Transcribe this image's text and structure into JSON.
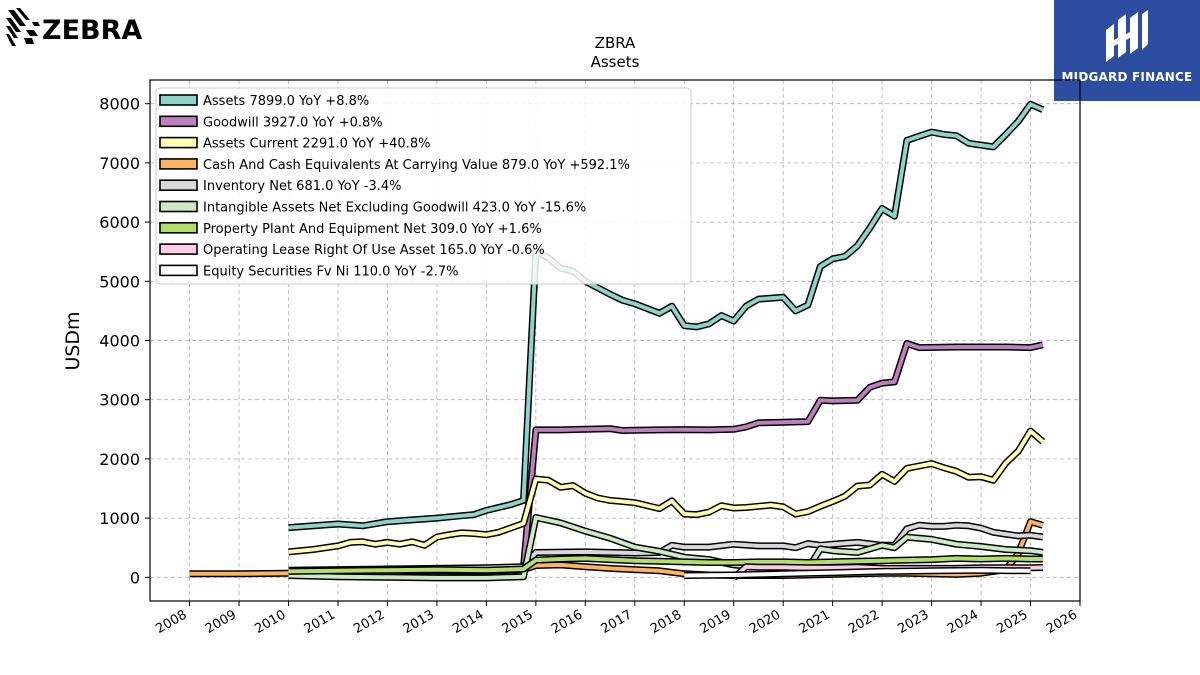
{
  "brand_left": {
    "name": "ZEBRA",
    "icon": "zebra-logo-icon"
  },
  "brand_right": {
    "name": "MIDGARD FINANCE",
    "icon": "midgard-logo-icon",
    "background": "#2d4ea0"
  },
  "chart_data": {
    "type": "line",
    "title": "ZBRA",
    "subtitle": "Assets",
    "ylabel": "USDm",
    "xlabel": "",
    "xlim": [
      2007.2,
      2026.0
    ],
    "ylim": [
      -400,
      8400
    ],
    "yticks": [
      0,
      1000,
      2000,
      3000,
      4000,
      5000,
      6000,
      7000,
      8000
    ],
    "xticks": [
      2008,
      2009,
      2010,
      2011,
      2012,
      2013,
      2014,
      2015,
      2016,
      2017,
      2018,
      2019,
      2020,
      2021,
      2022,
      2023,
      2024,
      2025,
      2026
    ],
    "grid": true,
    "legend_position": "top-left",
    "series": [
      {
        "name": "Assets",
        "legend": "Assets  7899.0 YoY +8.8%",
        "color": "#8dd3c7",
        "points": [
          [
            2010.0,
            840
          ],
          [
            2011.0,
            900
          ],
          [
            2011.5,
            870
          ],
          [
            2012.0,
            940
          ],
          [
            2012.5,
            970
          ],
          [
            2013.0,
            1000
          ],
          [
            2013.5,
            1040
          ],
          [
            2013.75,
            1060
          ],
          [
            2014.0,
            1130
          ],
          [
            2014.5,
            1230
          ],
          [
            2014.75,
            1300
          ],
          [
            2015.0,
            5500
          ],
          [
            2015.25,
            5400
          ],
          [
            2015.5,
            5220
          ],
          [
            2015.75,
            5170
          ],
          [
            2016.0,
            5000
          ],
          [
            2016.5,
            4780
          ],
          [
            2016.75,
            4680
          ],
          [
            2017.0,
            4620
          ],
          [
            2017.5,
            4460
          ],
          [
            2017.75,
            4580
          ],
          [
            2018.0,
            4250
          ],
          [
            2018.25,
            4230
          ],
          [
            2018.5,
            4280
          ],
          [
            2018.75,
            4420
          ],
          [
            2019.0,
            4330
          ],
          [
            2019.25,
            4580
          ],
          [
            2019.5,
            4700
          ],
          [
            2020.0,
            4730
          ],
          [
            2020.25,
            4500
          ],
          [
            2020.5,
            4600
          ],
          [
            2020.75,
            5250
          ],
          [
            2021.0,
            5380
          ],
          [
            2021.25,
            5420
          ],
          [
            2021.5,
            5600
          ],
          [
            2021.75,
            5900
          ],
          [
            2022.0,
            6230
          ],
          [
            2022.25,
            6100
          ],
          [
            2022.5,
            7380
          ],
          [
            2022.75,
            7450
          ],
          [
            2023.0,
            7520
          ],
          [
            2023.25,
            7480
          ],
          [
            2023.5,
            7460
          ],
          [
            2023.75,
            7330
          ],
          [
            2024.0,
            7300
          ],
          [
            2024.25,
            7270
          ],
          [
            2024.5,
            7480
          ],
          [
            2024.75,
            7700
          ],
          [
            2025.0,
            7990
          ],
          [
            2025.25,
            7899
          ]
        ]
      },
      {
        "name": "Goodwill",
        "legend": "Goodwill  3927.0 YoY +0.8%",
        "color": "#bc80bd",
        "points": [
          [
            2014.75,
            170
          ],
          [
            2015.0,
            2490
          ],
          [
            2015.5,
            2490
          ],
          [
            2016.0,
            2500
          ],
          [
            2016.5,
            2510
          ],
          [
            2016.75,
            2480
          ],
          [
            2017.5,
            2490
          ],
          [
            2018.0,
            2495
          ],
          [
            2018.5,
            2490
          ],
          [
            2019.0,
            2500
          ],
          [
            2019.25,
            2540
          ],
          [
            2019.5,
            2610
          ],
          [
            2020.0,
            2620
          ],
          [
            2020.5,
            2630
          ],
          [
            2020.75,
            2990
          ],
          [
            2021.0,
            2980
          ],
          [
            2021.5,
            2990
          ],
          [
            2021.75,
            3210
          ],
          [
            2022.0,
            3280
          ],
          [
            2022.25,
            3300
          ],
          [
            2022.5,
            3950
          ],
          [
            2022.75,
            3880
          ],
          [
            2023.5,
            3890
          ],
          [
            2024.5,
            3890
          ],
          [
            2025.0,
            3880
          ],
          [
            2025.25,
            3927
          ]
        ]
      },
      {
        "name": "Assets Current",
        "legend": "Assets Current  2291.0 YoY +40.8%",
        "color": "#ffffb3",
        "points": [
          [
            2010.0,
            430
          ],
          [
            2010.5,
            470
          ],
          [
            2011.0,
            530
          ],
          [
            2011.25,
            590
          ],
          [
            2011.5,
            600
          ],
          [
            2011.75,
            560
          ],
          [
            2012.0,
            590
          ],
          [
            2012.25,
            560
          ],
          [
            2012.5,
            600
          ],
          [
            2012.75,
            540
          ],
          [
            2013.0,
            680
          ],
          [
            2013.25,
            720
          ],
          [
            2013.5,
            750
          ],
          [
            2013.75,
            740
          ],
          [
            2014.0,
            720
          ],
          [
            2014.25,
            760
          ],
          [
            2014.75,
            910
          ],
          [
            2015.0,
            1660
          ],
          [
            2015.25,
            1640
          ],
          [
            2015.5,
            1520
          ],
          [
            2015.75,
            1550
          ],
          [
            2016.0,
            1420
          ],
          [
            2016.25,
            1340
          ],
          [
            2016.5,
            1300
          ],
          [
            2016.75,
            1280
          ],
          [
            2017.0,
            1260
          ],
          [
            2017.5,
            1160
          ],
          [
            2017.75,
            1290
          ],
          [
            2018.0,
            1070
          ],
          [
            2018.25,
            1060
          ],
          [
            2018.5,
            1100
          ],
          [
            2018.75,
            1210
          ],
          [
            2019.0,
            1170
          ],
          [
            2019.25,
            1180
          ],
          [
            2019.5,
            1200
          ],
          [
            2019.75,
            1220
          ],
          [
            2020.0,
            1190
          ],
          [
            2020.25,
            1070
          ],
          [
            2020.5,
            1110
          ],
          [
            2020.75,
            1200
          ],
          [
            2021.0,
            1280
          ],
          [
            2021.25,
            1370
          ],
          [
            2021.5,
            1540
          ],
          [
            2021.75,
            1560
          ],
          [
            2022.0,
            1740
          ],
          [
            2022.25,
            1620
          ],
          [
            2022.5,
            1840
          ],
          [
            2022.75,
            1880
          ],
          [
            2023.0,
            1920
          ],
          [
            2023.25,
            1850
          ],
          [
            2023.5,
            1790
          ],
          [
            2023.75,
            1690
          ],
          [
            2024.0,
            1700
          ],
          [
            2024.25,
            1640
          ],
          [
            2024.5,
            1930
          ],
          [
            2024.75,
            2130
          ],
          [
            2025.0,
            2470
          ],
          [
            2025.25,
            2291
          ]
        ]
      },
      {
        "name": "Cash And Cash Equivalents At Carrying Value",
        "legend": "Cash And Cash Equivalents At Carrying Value  879.0 YoY +592.1%",
        "color": "#fdb462",
        "points": [
          [
            2008.0,
            60
          ],
          [
            2009.0,
            60
          ],
          [
            2010.0,
            70
          ],
          [
            2011.0,
            80
          ],
          [
            2012.0,
            90
          ],
          [
            2013.0,
            110
          ],
          [
            2014.0,
            100
          ],
          [
            2014.75,
            130
          ],
          [
            2015.0,
            200
          ],
          [
            2015.5,
            210
          ],
          [
            2016.0,
            180
          ],
          [
            2016.5,
            150
          ],
          [
            2017.0,
            130
          ],
          [
            2017.5,
            110
          ],
          [
            2018.0,
            60
          ],
          [
            2018.5,
            40
          ],
          [
            2019.0,
            30
          ],
          [
            2019.5,
            30
          ],
          [
            2020.0,
            30
          ],
          [
            2020.5,
            40
          ],
          [
            2021.0,
            50
          ],
          [
            2021.5,
            60
          ],
          [
            2022.0,
            70
          ],
          [
            2022.5,
            70
          ],
          [
            2023.0,
            60
          ],
          [
            2023.5,
            50
          ],
          [
            2024.0,
            70
          ],
          [
            2024.5,
            130
          ],
          [
            2024.75,
            400
          ],
          [
            2025.0,
            940
          ],
          [
            2025.25,
            879
          ]
        ]
      },
      {
        "name": "Inventory Net",
        "legend": "Inventory Net  681.0 YoY -3.4%",
        "color": "#d9d9d9",
        "points": [
          [
            2010.0,
            120
          ],
          [
            2011.0,
            130
          ],
          [
            2012.0,
            140
          ],
          [
            2013.0,
            150
          ],
          [
            2014.0,
            160
          ],
          [
            2014.75,
            180
          ],
          [
            2015.0,
            420
          ],
          [
            2016.0,
            430
          ],
          [
            2017.0,
            410
          ],
          [
            2017.5,
            420
          ],
          [
            2017.75,
            540
          ],
          [
            2018.0,
            510
          ],
          [
            2018.5,
            510
          ],
          [
            2019.0,
            560
          ],
          [
            2019.5,
            530
          ],
          [
            2020.0,
            530
          ],
          [
            2020.25,
            500
          ],
          [
            2020.5,
            570
          ],
          [
            2020.75,
            540
          ],
          [
            2021.0,
            560
          ],
          [
            2021.5,
            590
          ],
          [
            2022.0,
            540
          ],
          [
            2022.25,
            540
          ],
          [
            2022.5,
            820
          ],
          [
            2022.75,
            880
          ],
          [
            2023.0,
            860
          ],
          [
            2023.25,
            860
          ],
          [
            2023.5,
            880
          ],
          [
            2023.75,
            870
          ],
          [
            2024.0,
            830
          ],
          [
            2024.25,
            760
          ],
          [
            2024.5,
            730
          ],
          [
            2024.75,
            700
          ],
          [
            2025.0,
            710
          ],
          [
            2025.25,
            681
          ]
        ]
      },
      {
        "name": "Intangible Assets Net Excluding Goodwill",
        "legend": "Intangible Assets Net Excluding Goodwill  423.0 YoY -15.6%",
        "color": "#ccebc5",
        "points": [
          [
            2010.0,
            30
          ],
          [
            2011.0,
            10
          ],
          [
            2012.0,
            0
          ],
          [
            2013.0,
            -10
          ],
          [
            2014.0,
            -10
          ],
          [
            2014.75,
            10
          ],
          [
            2015.0,
            1010
          ],
          [
            2015.5,
            920
          ],
          [
            2016.0,
            780
          ],
          [
            2016.5,
            660
          ],
          [
            2017.0,
            510
          ],
          [
            2017.5,
            440
          ],
          [
            2018.0,
            340
          ],
          [
            2018.5,
            300
          ],
          [
            2019.0,
            210
          ],
          [
            2019.5,
            180
          ],
          [
            2020.0,
            150
          ],
          [
            2020.5,
            140
          ],
          [
            2020.75,
            480
          ],
          [
            2021.0,
            450
          ],
          [
            2021.5,
            420
          ],
          [
            2022.0,
            540
          ],
          [
            2022.25,
            500
          ],
          [
            2022.5,
            680
          ],
          [
            2023.0,
            640
          ],
          [
            2023.5,
            560
          ],
          [
            2024.0,
            520
          ],
          [
            2024.5,
            470
          ],
          [
            2025.0,
            450
          ],
          [
            2025.25,
            423
          ]
        ]
      },
      {
        "name": "Property Plant And Equipment Net",
        "legend": "Property Plant And Equipment Net  309.0 YoY +1.6%",
        "color": "#b3de69",
        "points": [
          [
            2010.0,
            100
          ],
          [
            2011.0,
            110
          ],
          [
            2012.0,
            120
          ],
          [
            2013.0,
            130
          ],
          [
            2014.0,
            120
          ],
          [
            2014.75,
            140
          ],
          [
            2015.0,
            290
          ],
          [
            2015.5,
            310
          ],
          [
            2016.0,
            320
          ],
          [
            2016.5,
            300
          ],
          [
            2017.0,
            280
          ],
          [
            2017.5,
            270
          ],
          [
            2018.0,
            260
          ],
          [
            2018.5,
            250
          ],
          [
            2019.0,
            250
          ],
          [
            2019.5,
            260
          ],
          [
            2020.0,
            260
          ],
          [
            2020.5,
            250
          ],
          [
            2021.0,
            260
          ],
          [
            2021.5,
            270
          ],
          [
            2022.0,
            280
          ],
          [
            2022.5,
            290
          ],
          [
            2023.0,
            300
          ],
          [
            2023.5,
            320
          ],
          [
            2024.0,
            310
          ],
          [
            2024.5,
            320
          ],
          [
            2025.0,
            310
          ],
          [
            2025.25,
            309
          ]
        ]
      },
      {
        "name": "Operating Lease Right Of Use Asset",
        "legend": "Operating Lease Right Of Use Asset  165.0 YoY -0.6%",
        "color": "#fccde5",
        "points": [
          [
            2019.0,
            -10
          ],
          [
            2019.25,
            180
          ],
          [
            2019.5,
            170
          ],
          [
            2020.0,
            170
          ],
          [
            2020.5,
            160
          ],
          [
            2021.0,
            160
          ],
          [
            2021.5,
            170
          ],
          [
            2022.0,
            150
          ],
          [
            2022.5,
            150
          ],
          [
            2023.0,
            150
          ],
          [
            2023.5,
            150
          ],
          [
            2024.0,
            160
          ],
          [
            2024.5,
            160
          ],
          [
            2025.0,
            160
          ],
          [
            2025.25,
            165
          ]
        ]
      },
      {
        "name": "Equity Securities Fv Ni",
        "legend": "Equity Securities Fv Ni  110.0 YoY -2.7%",
        "color": "#ffffff",
        "points": [
          [
            2018.0,
            30
          ],
          [
            2019.0,
            40
          ],
          [
            2020.0,
            60
          ],
          [
            2021.0,
            80
          ],
          [
            2022.0,
            100
          ],
          [
            2023.0,
            110
          ],
          [
            2024.0,
            120
          ],
          [
            2024.5,
            113
          ],
          [
            2025.0,
            110
          ]
        ]
      }
    ]
  }
}
